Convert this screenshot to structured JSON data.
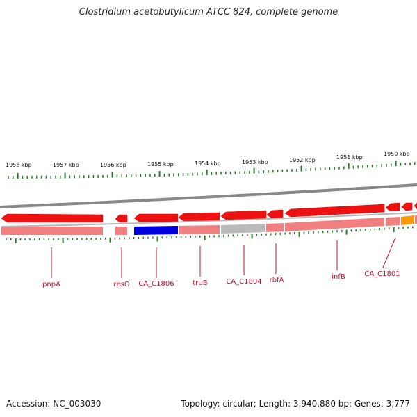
{
  "title": "Clostridium acetobutylicum ATCC 824, complete genome",
  "accession": "Accession: NC_003030",
  "summary": "Topology: circular; Length: 3,940,880 bp; Genes: 3,777",
  "scale_labels": [
    "1958 kbp",
    "1957 kbp",
    "1956 kbp",
    "1955 kbp",
    "1954 kbp",
    "1953 kbp",
    "1952 kbp",
    "1951 kbp",
    "1950 kbp"
  ],
  "gene_labels": [
    "pnpA",
    "rpsO",
    "CA_C1806",
    "truB",
    "CA_C1804",
    "rbfA",
    "infB",
    "CA_C1801"
  ],
  "colors": {
    "gene_arrow": "#ee1111",
    "gene_track": "#f08080",
    "highlight_blue": "#0000dd",
    "highlight_grey": "#bbbbbb",
    "highlight_orange": "#ff9900",
    "tick_green": "#227722",
    "backbone": "#888888",
    "label_red": "#c0102a"
  }
}
